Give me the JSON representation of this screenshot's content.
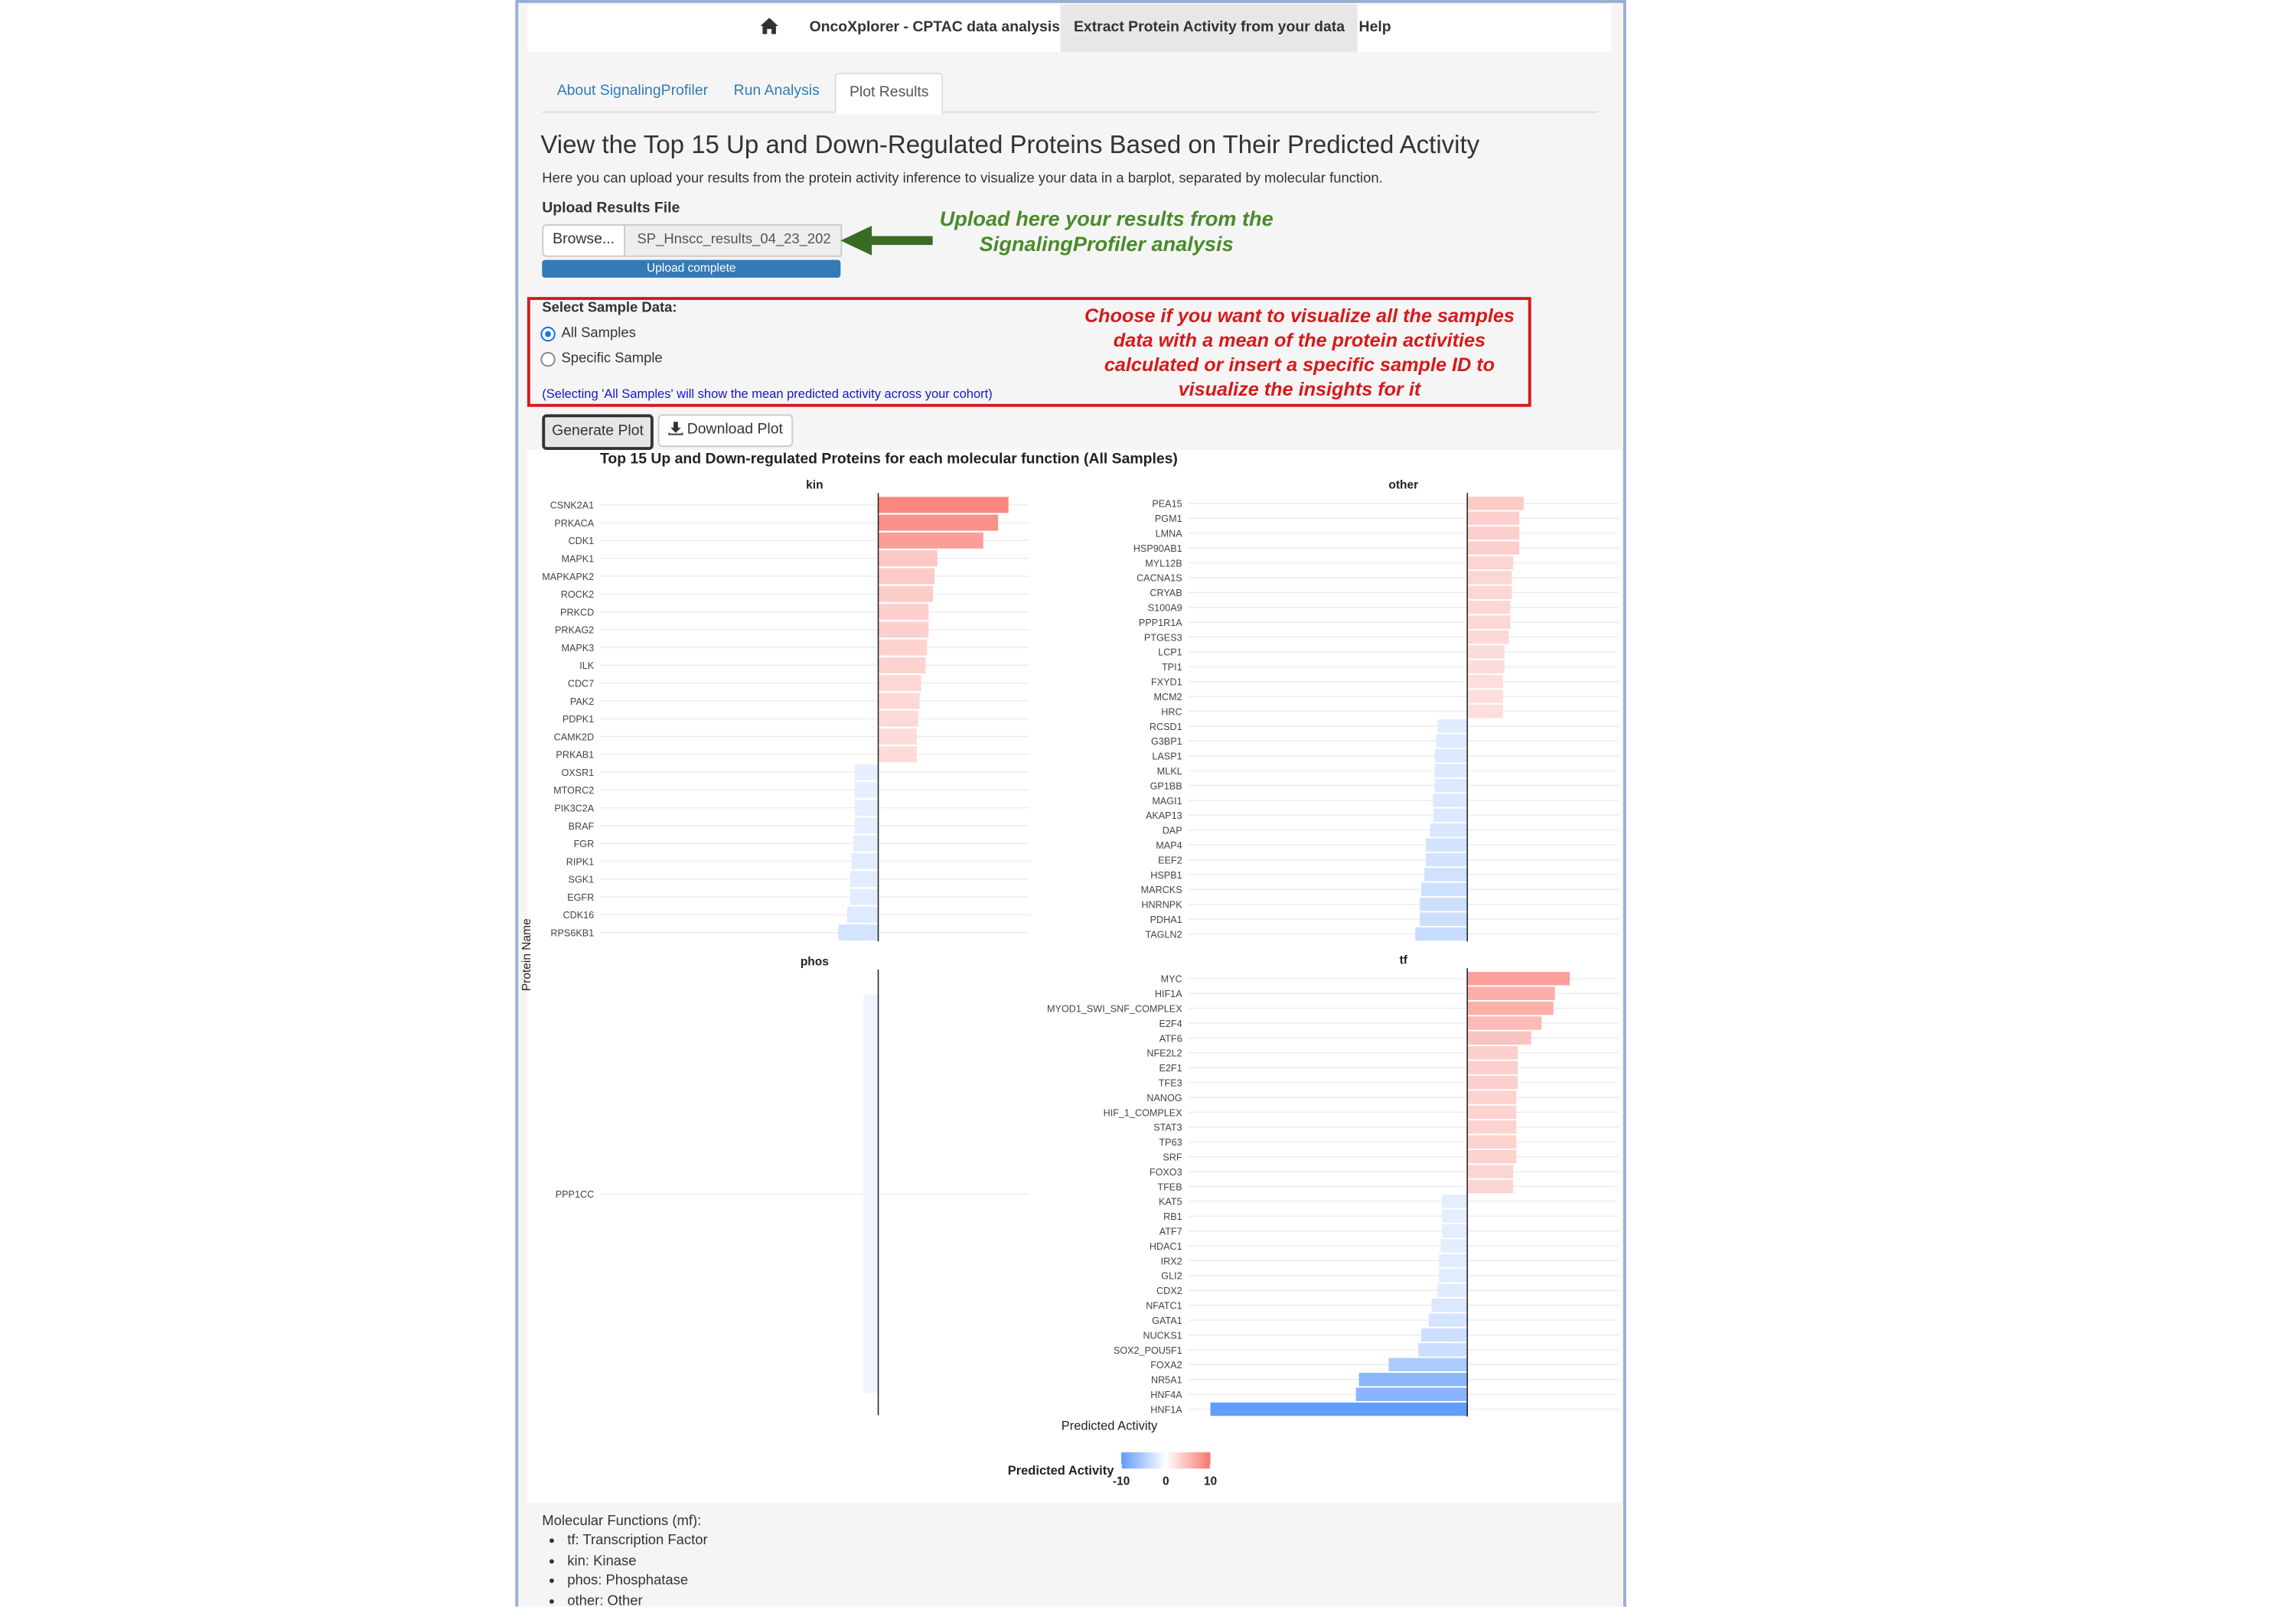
{
  "navbar": {
    "items": [
      "OncoXplorer - CPTAC data analysis",
      "Extract Protein Activity from your data",
      "Help"
    ],
    "active": 1
  },
  "tabs": {
    "items": [
      "About SignalingProfiler",
      "Run Analysis",
      "Plot Results"
    ],
    "active": 2
  },
  "heading": "View the Top 15 Up and Down-Regulated Proteins Based on Their Predicted Activity",
  "description": "Here you can upload your results from the protein activity inference to visualize your data in a barplot, separated by molecular function.",
  "upload": {
    "label": "Upload Results File",
    "button": "Browse...",
    "file_name": "SP_Hnscc_results_04_23_202",
    "progress": "Upload complete"
  },
  "upload_annotation": [
    "Upload here your results from the",
    "SignalingProfiler analysis"
  ],
  "sample_select": {
    "label": "Select Sample Data:",
    "options": [
      "All Samples",
      "Specific Sample"
    ],
    "selected": 0,
    "note": "(Selecting 'All Samples' will show the mean predicted activity across your cohort)"
  },
  "sample_annotation": [
    "Choose if you want to visualize all the samples",
    "data with a mean of the protein activities",
    "calculated or insert a specific sample ID to",
    "visualize the insights for it"
  ],
  "buttons": [
    "Generate Plot",
    "Download Plot"
  ],
  "chart_data": {
    "type": "bar",
    "orientation": "horizontal",
    "title": "Top 15 Up and Down-regulated Proteins for each molecular function (All Samples)",
    "y_label": "Protein Name",
    "x_label": "Predicted Activity",
    "xlim": [
      -18.8,
      10.2
    ],
    "grid": true,
    "panels": [
      {
        "name": "kin",
        "categories": [
          "CSNK2A1",
          "PRKACA",
          "CDK1",
          "MAPK1",
          "MAPKAPK2",
          "ROCK2",
          "PRKCD",
          "PRKAG2",
          "MAPK3",
          "ILK",
          "CDC7",
          "PAK2",
          "PDPK1",
          "CAMK2D",
          "PRKAB1",
          "OXSR1",
          "MTORC2",
          "PIK3C2A",
          "BRAF",
          "FGR",
          "RIPK1",
          "SGK1",
          "EGFR",
          "CDK16",
          "RPS6KB1"
        ],
        "values": [
          8.8,
          8.1,
          7.1,
          4.0,
          3.8,
          3.7,
          3.4,
          3.4,
          3.3,
          3.2,
          2.9,
          2.8,
          2.7,
          2.6,
          2.6,
          -1.6,
          -1.6,
          -1.6,
          -1.6,
          -1.7,
          -1.8,
          -1.9,
          -1.9,
          -2.1,
          -2.7
        ]
      },
      {
        "name": "other",
        "categories": [
          "PEA15",
          "PGM1",
          "LMNA",
          "HSP90AB1",
          "MYL12B",
          "CACNA1S",
          "CRYAB",
          "S100A9",
          "PPP1R1A",
          "PTGES3",
          "LCP1",
          "TPI1",
          "FXYD1",
          "MCM2",
          "HRC",
          "RCSD1",
          "G3BP1",
          "LASP1",
          "MLKL",
          "GP1BB",
          "MAGI1",
          "AKAP13",
          "DAP",
          "MAP4",
          "EEF2",
          "HSPB1",
          "MARCKS",
          "HNRNPK",
          "PDHA1",
          "TAGLN2"
        ],
        "values": [
          3.8,
          3.5,
          3.5,
          3.5,
          3.1,
          3.0,
          3.0,
          2.9,
          2.9,
          2.8,
          2.5,
          2.5,
          2.4,
          2.4,
          2.4,
          -2.0,
          -2.1,
          -2.2,
          -2.2,
          -2.2,
          -2.3,
          -2.3,
          -2.5,
          -2.8,
          -2.8,
          -2.9,
          -3.1,
          -3.2,
          -3.2,
          -3.5
        ]
      },
      {
        "name": "phos",
        "categories": [
          "PPP1CC"
        ],
        "values": [
          -1.0
        ]
      },
      {
        "name": "tf",
        "categories": [
          "MYC",
          "HIF1A",
          "MYOD1_SWI_SNF_COMPLEX",
          "E2F4",
          "ATF6",
          "NFE2L2",
          "E2F1",
          "TFE3",
          "NANOG",
          "HIF_1_COMPLEX",
          "STAT3",
          "TP63",
          "SRF",
          "FOXO3",
          "TFEB",
          "KAT5",
          "RB1",
          "ATF7",
          "HDAC1",
          "IRX2",
          "GLI2",
          "CDX2",
          "NFATC1",
          "GATA1",
          "NUCKS1",
          "SOX2_POU5F1",
          "FOXA2",
          "NR5A1",
          "HNF4A",
          "HNF1A"
        ],
        "values": [
          6.9,
          5.9,
          5.8,
          5.0,
          4.3,
          3.4,
          3.4,
          3.4,
          3.3,
          3.3,
          3.3,
          3.3,
          3.3,
          3.1,
          3.1,
          -1.7,
          -1.7,
          -1.7,
          -1.8,
          -1.9,
          -1.9,
          -2.0,
          -2.4,
          -2.6,
          -3.1,
          -3.3,
          -5.3,
          -7.3,
          -7.5,
          -17.3
        ]
      }
    ],
    "colorbar": {
      "title": "Predicted Activity",
      "lim": [
        -10,
        10
      ],
      "ticks": [
        -10,
        0,
        10
      ],
      "colors": {
        "low": "#619cff",
        "mid": "#ffffff",
        "high": "#f8766d"
      }
    }
  },
  "footer": {
    "title": "Molecular Functions (mf):",
    "items": [
      "tf: Transcription Factor",
      "kin: Kinase",
      "phos: Phosphatase",
      "other: Other"
    ]
  }
}
